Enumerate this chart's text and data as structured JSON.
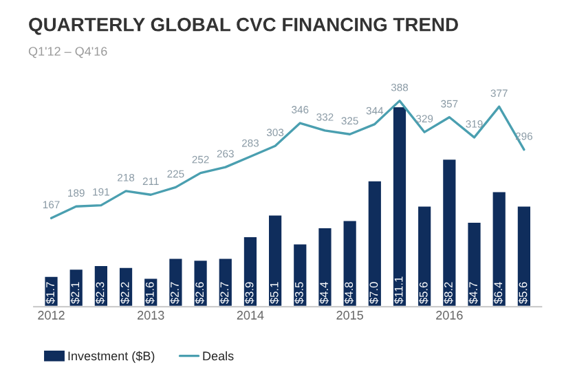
{
  "chart_data": {
    "type": "bar",
    "title": "QUARTERLY GLOBAL CVC FINANCING TREND",
    "subtitle": "Q1'12 – Q4'16",
    "categories": [
      "2012",
      null,
      null,
      null,
      "2013",
      null,
      null,
      null,
      "2014",
      null,
      null,
      null,
      "2015",
      null,
      null,
      null,
      "2016",
      null,
      null,
      null
    ],
    "series": [
      {
        "name": "Investment ($B)",
        "axis": "y",
        "color": "#0f2d5c",
        "values": [
          1.7,
          2.1,
          2.3,
          2.2,
          1.6,
          2.7,
          2.6,
          2.7,
          3.9,
          5.1,
          3.5,
          4.4,
          4.8,
          7.0,
          11.1,
          5.6,
          8.2,
          4.7,
          6.4,
          5.6
        ],
        "value_labels": [
          "$1.7",
          "$2.1",
          "$2.3",
          "$2.2",
          "$1.6",
          "$2.7",
          "$2.6",
          "$2.7",
          "$3.9",
          "$5.1",
          "$3.5",
          "$4.4",
          "$4.8",
          "$7.0",
          "$11.1",
          "$5.6",
          "$8.2",
          "$4.7",
          "$6.4",
          "$5.6"
        ]
      },
      {
        "name": "Deals",
        "type": "line",
        "axis": "y2",
        "color": "#4a9fb0",
        "values": [
          167,
          189,
          191,
          218,
          211,
          225,
          252,
          263,
          283,
          303,
          346,
          332,
          325,
          344,
          388,
          329,
          357,
          319,
          377,
          296
        ],
        "value_labels": [
          "167",
          "189",
          "191",
          "218",
          "211",
          "225",
          "252",
          "263",
          "283",
          "303",
          "346",
          "332",
          "325",
          "344",
          "388",
          "329",
          "357",
          "319",
          "377",
          "296"
        ]
      }
    ],
    "tick_labels": "x",
    "grid": false,
    "legend": "bottom left",
    "marker": "none",
    "line_style": "solid"
  }
}
